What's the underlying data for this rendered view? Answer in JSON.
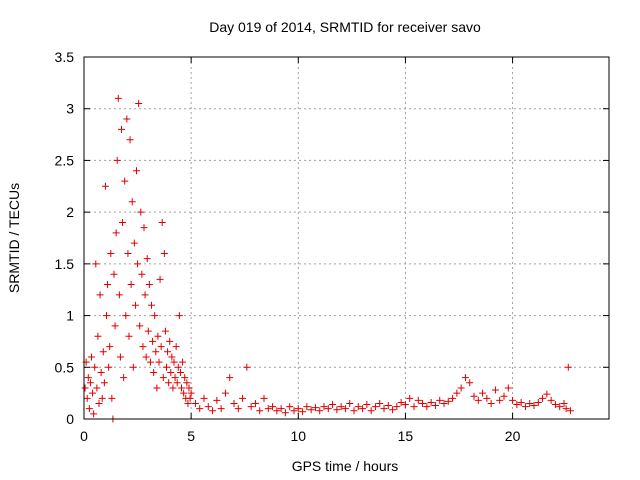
{
  "chart_data": {
    "type": "scatter",
    "title": "Day 019 of 2014, SRMTID for receiver savo",
    "xlabel": "GPS time / hours",
    "ylabel": "SRMTID / TECUs",
    "xlim": [
      0,
      24.5
    ],
    "ylim": [
      0,
      3.5
    ],
    "xticks": [
      0,
      5,
      10,
      15,
      20
    ],
    "xtick_labels": [
      "0",
      "5",
      "10",
      "15",
      "20"
    ],
    "yticks": [
      0,
      0.5,
      1,
      1.5,
      2,
      2.5,
      3,
      3.5
    ],
    "ytick_labels": [
      "0",
      "0.5",
      "1",
      "1.5",
      "2",
      "2.5",
      "3",
      "3.5"
    ],
    "grid": true,
    "marker": "+",
    "series": [
      {
        "name": "savo",
        "color": "#e00000",
        "points": [
          [
            0.05,
            0.3
          ],
          [
            0.1,
            0.55
          ],
          [
            0.15,
            0.2
          ],
          [
            0.2,
            0.4
          ],
          [
            0.25,
            0.1
          ],
          [
            0.3,
            0.35
          ],
          [
            0.35,
            0.6
          ],
          [
            0.4,
            0.25
          ],
          [
            0.45,
            0.05
          ],
          [
            0.5,
            0.5
          ],
          [
            0.55,
            1.5
          ],
          [
            0.6,
            0.3
          ],
          [
            0.65,
            0.8
          ],
          [
            0.7,
            0.15
          ],
          [
            0.75,
            1.2
          ],
          [
            0.8,
            0.45
          ],
          [
            0.85,
            0.2
          ],
          [
            0.9,
            0.65
          ],
          [
            0.95,
            0.35
          ],
          [
            1.0,
            2.25
          ],
          [
            1.05,
            1.0
          ],
          [
            1.1,
            1.3
          ],
          [
            1.15,
            0.5
          ],
          [
            1.2,
            0.7
          ],
          [
            1.25,
            1.6
          ],
          [
            1.3,
            0.2
          ],
          [
            1.35,
            0.0
          ],
          [
            1.4,
            1.4
          ],
          [
            1.45,
            0.9
          ],
          [
            1.5,
            1.8
          ],
          [
            1.55,
            2.5
          ],
          [
            1.6,
            3.1
          ],
          [
            1.65,
            1.2
          ],
          [
            1.7,
            0.6
          ],
          [
            1.75,
            2.8
          ],
          [
            1.8,
            1.9
          ],
          [
            1.85,
            0.4
          ],
          [
            1.9,
            2.3
          ],
          [
            1.95,
            1.0
          ],
          [
            2.0,
            2.9
          ],
          [
            2.05,
            1.6
          ],
          [
            2.1,
            0.8
          ],
          [
            2.15,
            2.7
          ],
          [
            2.2,
            1.3
          ],
          [
            2.25,
            2.1
          ],
          [
            2.3,
            0.5
          ],
          [
            2.35,
            1.7
          ],
          [
            2.4,
            1.1
          ],
          [
            2.45,
            2.4
          ],
          [
            2.5,
            1.5
          ],
          [
            2.55,
            3.05
          ],
          [
            2.6,
            0.9
          ],
          [
            2.65,
            2.0
          ],
          [
            2.7,
            1.4
          ],
          [
            2.75,
            0.7
          ],
          [
            2.8,
            1.85
          ],
          [
            2.85,
            1.2
          ],
          [
            2.9,
            0.6
          ],
          [
            2.95,
            1.55
          ],
          [
            3.0,
            0.85
          ],
          [
            3.05,
            1.3
          ],
          [
            3.1,
            0.55
          ],
          [
            3.15,
            1.1
          ],
          [
            3.2,
            0.75
          ],
          [
            3.25,
            0.45
          ],
          [
            3.3,
            1.0
          ],
          [
            3.35,
            0.65
          ],
          [
            3.4,
            0.3
          ],
          [
            3.45,
            0.8
          ],
          [
            3.5,
            0.55
          ],
          [
            3.55,
            1.35
          ],
          [
            3.6,
            0.7
          ],
          [
            3.65,
            1.9
          ],
          [
            3.7,
            0.4
          ],
          [
            3.75,
            1.6
          ],
          [
            3.8,
            0.85
          ],
          [
            3.85,
            0.5
          ],
          [
            3.9,
            0.65
          ],
          [
            3.95,
            0.35
          ],
          [
            4.0,
            0.75
          ],
          [
            4.05,
            0.45
          ],
          [
            4.1,
            0.6
          ],
          [
            4.15,
            0.3
          ],
          [
            4.2,
            0.55
          ],
          [
            4.25,
            0.4
          ],
          [
            4.3,
            0.7
          ],
          [
            4.35,
            0.35
          ],
          [
            4.4,
            0.5
          ],
          [
            4.45,
            1.0
          ],
          [
            4.5,
            0.45
          ],
          [
            4.55,
            0.3
          ],
          [
            4.6,
            0.55
          ],
          [
            4.65,
            0.25
          ],
          [
            4.7,
            0.4
          ],
          [
            4.75,
            0.2
          ],
          [
            4.8,
            0.35
          ],
          [
            4.85,
            0.15
          ],
          [
            4.9,
            0.3
          ],
          [
            4.95,
            0.2
          ],
          [
            5.0,
            0.25
          ],
          [
            5.2,
            0.15
          ],
          [
            5.4,
            0.1
          ],
          [
            5.6,
            0.2
          ],
          [
            5.8,
            0.12
          ],
          [
            6.0,
            0.08
          ],
          [
            6.2,
            0.18
          ],
          [
            6.4,
            0.1
          ],
          [
            6.6,
            0.25
          ],
          [
            6.8,
            0.4
          ],
          [
            7.0,
            0.15
          ],
          [
            7.2,
            0.1
          ],
          [
            7.4,
            0.2
          ],
          [
            7.6,
            0.5
          ],
          [
            7.8,
            0.12
          ],
          [
            8.0,
            0.15
          ],
          [
            8.2,
            0.08
          ],
          [
            8.4,
            0.2
          ],
          [
            8.6,
            0.1
          ],
          [
            8.8,
            0.12
          ],
          [
            9.0,
            0.08
          ],
          [
            9.2,
            0.1
          ],
          [
            9.4,
            0.06
          ],
          [
            9.6,
            0.12
          ],
          [
            9.8,
            0.08
          ],
          [
            10.0,
            0.1
          ],
          [
            10.2,
            0.07
          ],
          [
            10.4,
            0.12
          ],
          [
            10.6,
            0.09
          ],
          [
            10.8,
            0.11
          ],
          [
            11.0,
            0.08
          ],
          [
            11.2,
            0.12
          ],
          [
            11.4,
            0.1
          ],
          [
            11.6,
            0.14
          ],
          [
            11.8,
            0.09
          ],
          [
            12.0,
            0.12
          ],
          [
            12.2,
            0.1
          ],
          [
            12.4,
            0.15
          ],
          [
            12.6,
            0.08
          ],
          [
            12.8,
            0.12
          ],
          [
            13.0,
            0.1
          ],
          [
            13.2,
            0.14
          ],
          [
            13.4,
            0.08
          ],
          [
            13.6,
            0.12
          ],
          [
            13.8,
            0.15
          ],
          [
            14.0,
            0.1
          ],
          [
            14.2,
            0.13
          ],
          [
            14.4,
            0.09
          ],
          [
            14.6,
            0.12
          ],
          [
            14.8,
            0.16
          ],
          [
            15.0,
            0.14
          ],
          [
            15.2,
            0.2
          ],
          [
            15.4,
            0.12
          ],
          [
            15.6,
            0.18
          ],
          [
            15.8,
            0.15
          ],
          [
            16.0,
            0.12
          ],
          [
            16.2,
            0.16
          ],
          [
            16.4,
            0.13
          ],
          [
            16.6,
            0.18
          ],
          [
            16.8,
            0.15
          ],
          [
            17.0,
            0.17
          ],
          [
            17.2,
            0.2
          ],
          [
            17.4,
            0.25
          ],
          [
            17.6,
            0.3
          ],
          [
            17.8,
            0.4
          ],
          [
            18.0,
            0.35
          ],
          [
            18.2,
            0.22
          ],
          [
            18.4,
            0.18
          ],
          [
            18.6,
            0.25
          ],
          [
            18.8,
            0.2
          ],
          [
            19.0,
            0.15
          ],
          [
            19.2,
            0.28
          ],
          [
            19.4,
            0.18
          ],
          [
            19.6,
            0.22
          ],
          [
            19.8,
            0.3
          ],
          [
            20.0,
            0.18
          ],
          [
            20.2,
            0.14
          ],
          [
            20.4,
            0.16
          ],
          [
            20.6,
            0.12
          ],
          [
            20.8,
            0.15
          ],
          [
            21.0,
            0.13
          ],
          [
            21.2,
            0.16
          ],
          [
            21.4,
            0.2
          ],
          [
            21.6,
            0.24
          ],
          [
            21.8,
            0.18
          ],
          [
            22.0,
            0.14
          ],
          [
            22.2,
            0.12
          ],
          [
            22.4,
            0.15
          ],
          [
            22.5,
            0.1
          ],
          [
            22.6,
            0.5
          ],
          [
            22.7,
            0.08
          ]
        ]
      }
    ]
  }
}
